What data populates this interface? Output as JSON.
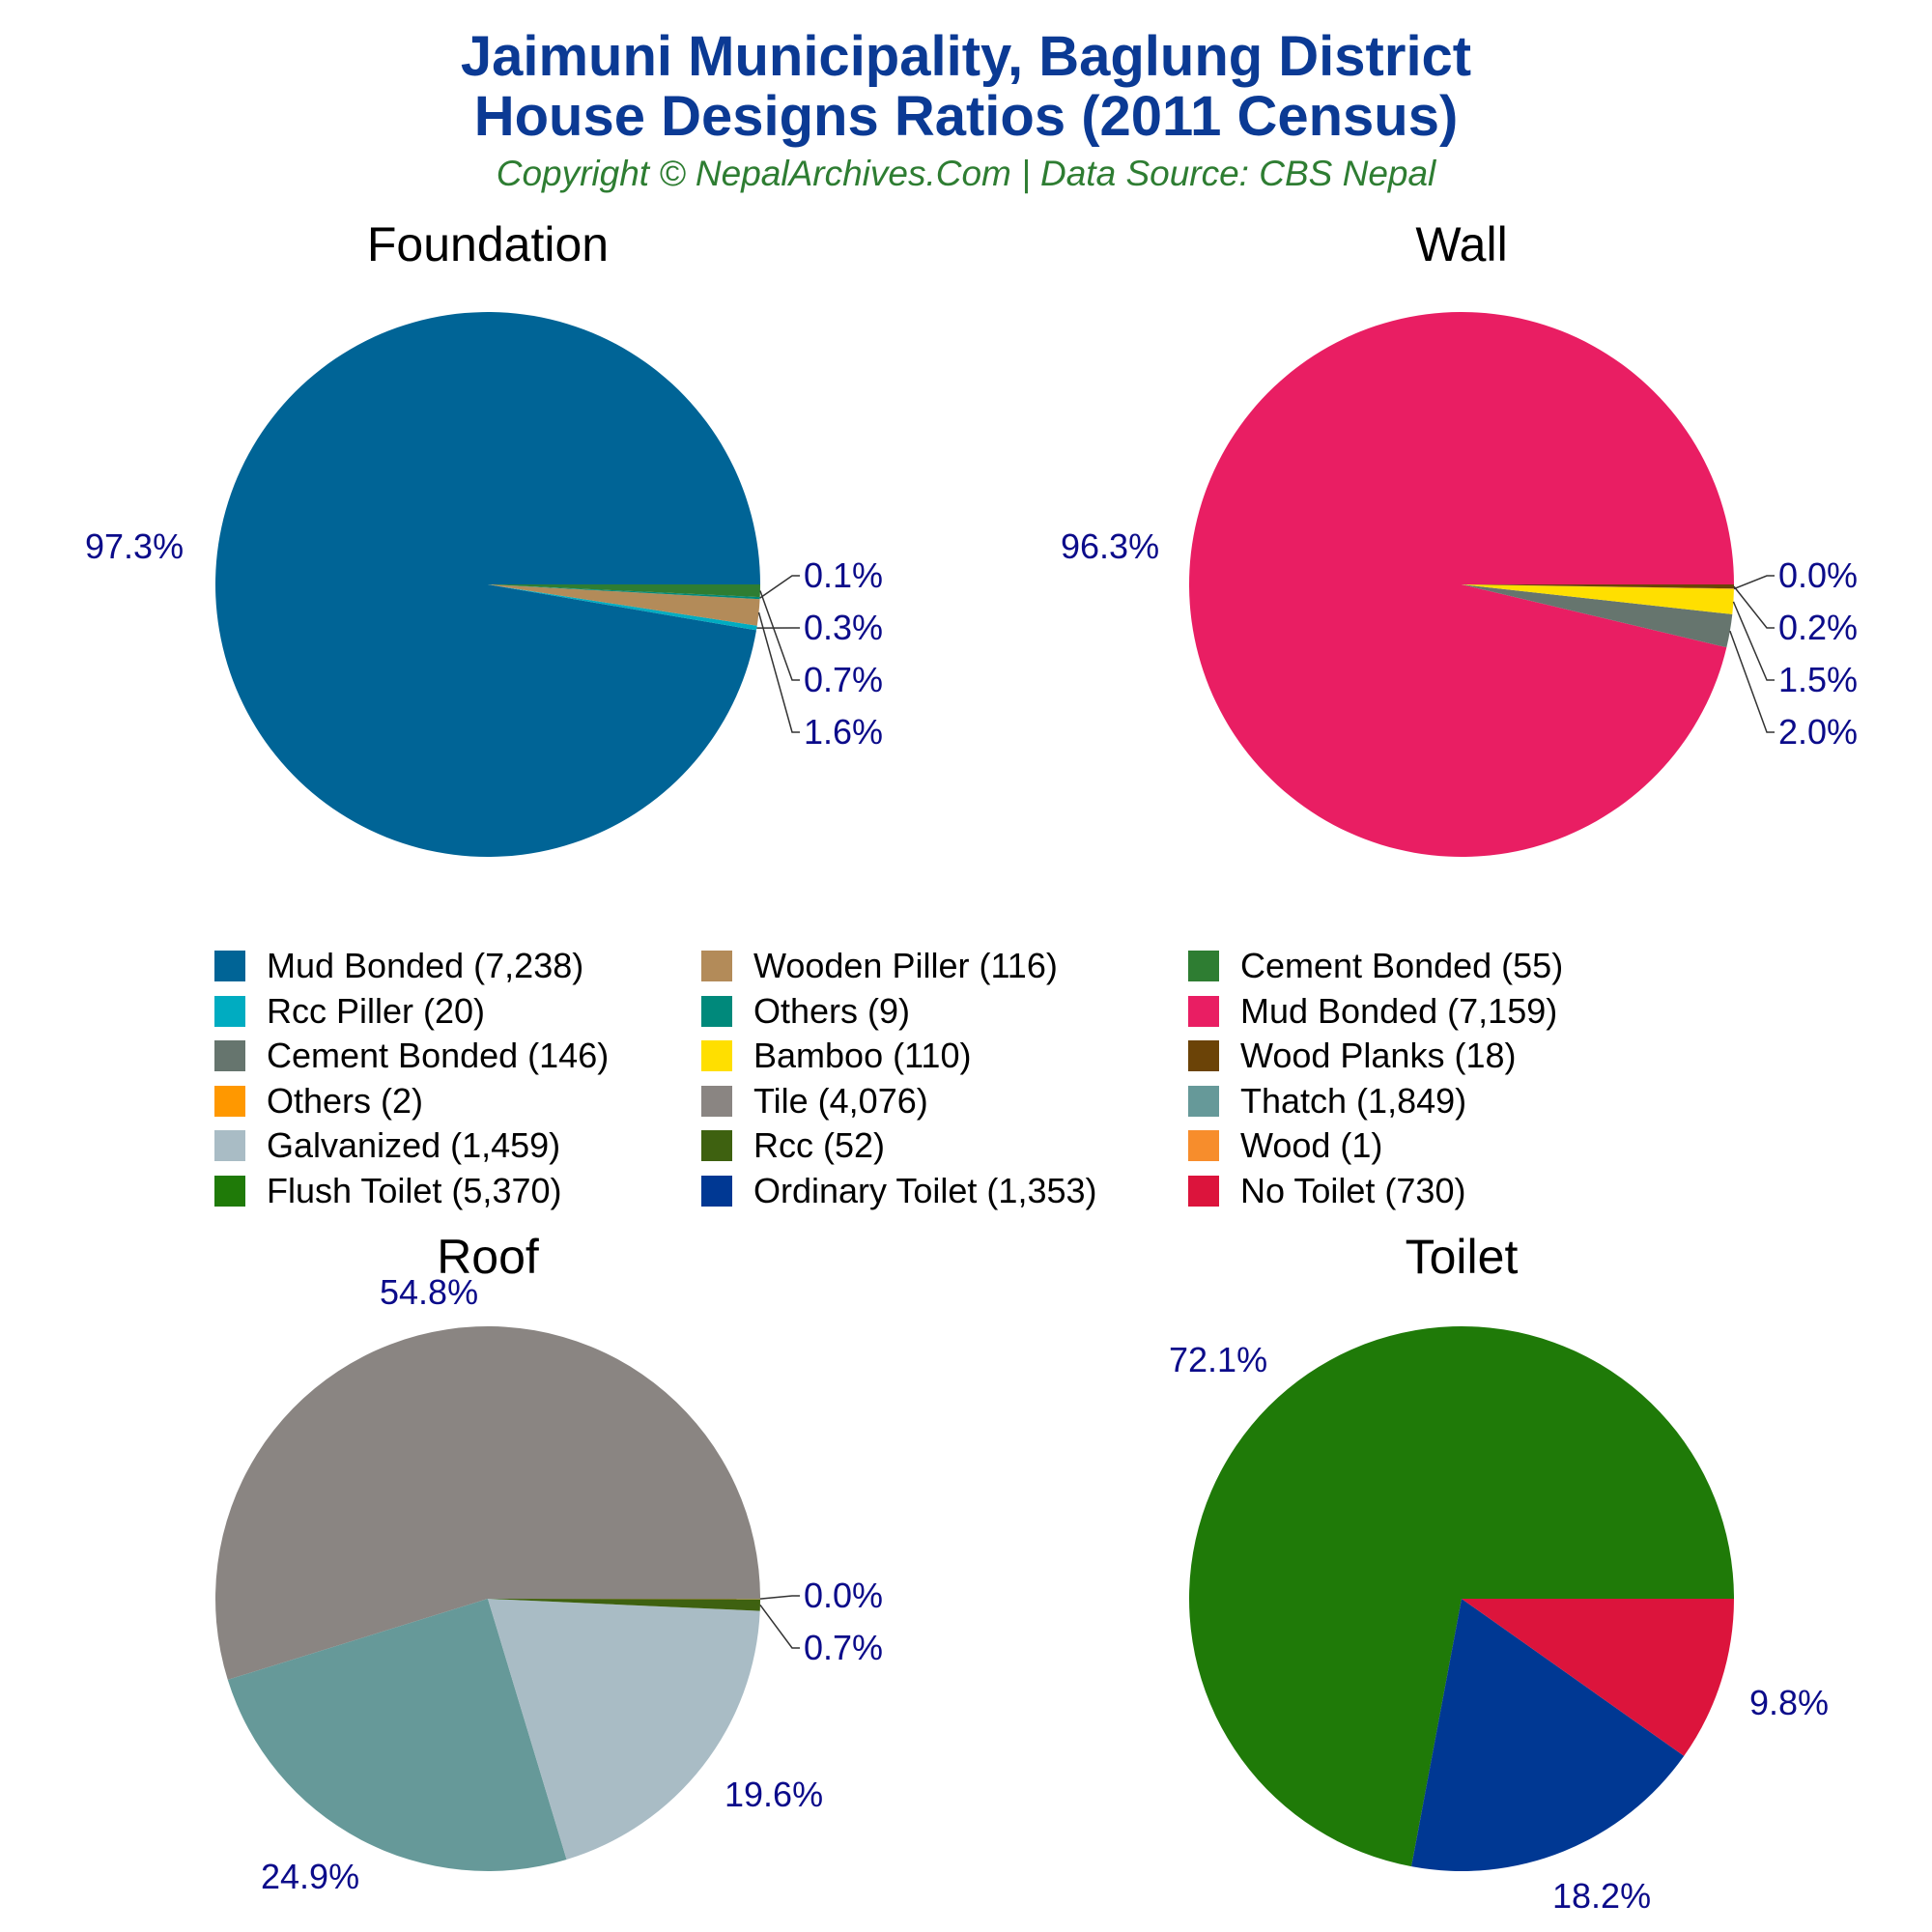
{
  "header": {
    "title_line1": "Jaimuni Municipality, Baglung District",
    "title_line2": "House Designs Ratios (2011 Census)",
    "subtitle": "Copyright © NepalArchives.Com | Data Source: CBS Nepal"
  },
  "chart_data": [
    {
      "type": "pie",
      "title": "Foundation",
      "slices": [
        {
          "label": "Mud Bonded",
          "value": 7238,
          "percent_label": "97.3%",
          "color": "#006496"
        },
        {
          "label": "Rcc Piller",
          "value": 20,
          "percent_label": "0.3%",
          "color": "#00acc1"
        },
        {
          "label": "Wooden Piller",
          "value": 116,
          "percent_label": "1.6%",
          "color": "#b38b59"
        },
        {
          "label": "Others",
          "value": 9,
          "percent_label": "0.1%",
          "color": "#00897b"
        },
        {
          "label": "Cement Bonded",
          "value": 55,
          "percent_label": "0.7%",
          "color": "#2e7d32"
        }
      ]
    },
    {
      "type": "pie",
      "title": "Wall",
      "slices": [
        {
          "label": "Mud Bonded",
          "value": 7159,
          "percent_label": "96.3%",
          "color": "#e91e63"
        },
        {
          "label": "Cement Bonded",
          "value": 146,
          "percent_label": "2.0%",
          "color": "#66756e"
        },
        {
          "label": "Bamboo",
          "value": 110,
          "percent_label": "1.5%",
          "color": "#ffdf00"
        },
        {
          "label": "Others",
          "value": 2,
          "percent_label": "0.0%",
          "color": "#ff9800"
        },
        {
          "label": "Wood Planks",
          "value": 18,
          "percent_label": "0.2%",
          "color": "#6b4307"
        }
      ]
    },
    {
      "type": "pie",
      "title": "Roof",
      "slices": [
        {
          "label": "Tile",
          "value": 4076,
          "percent_label": "54.8%",
          "color": "#8a8582"
        },
        {
          "label": "Thatch",
          "value": 1849,
          "percent_label": "24.9%",
          "color": "#669999"
        },
        {
          "label": "Galvanized",
          "value": 1459,
          "percent_label": "19.6%",
          "color": "#a9bcc5"
        },
        {
          "label": "Rcc",
          "value": 52,
          "percent_label": "0.7%",
          "color": "#3e6110"
        },
        {
          "label": "Wood",
          "value": 1,
          "percent_label": "0.0%",
          "color": "#f78d2c"
        }
      ]
    },
    {
      "type": "pie",
      "title": "Toilet",
      "slices": [
        {
          "label": "Flush Toilet",
          "value": 5370,
          "percent_label": "72.1%",
          "color": "#1f7a08"
        },
        {
          "label": "Ordinary Toilet",
          "value": 1353,
          "percent_label": "18.2%",
          "color": "#003893"
        },
        {
          "label": "No Toilet",
          "value": 730,
          "percent_label": "9.8%",
          "color": "#dc143c"
        }
      ]
    }
  ],
  "legend": [
    {
      "text": "Mud Bonded (7,238)",
      "color": "#006496"
    },
    {
      "text": "Wooden Piller (116)",
      "color": "#b38b59"
    },
    {
      "text": "Cement Bonded (55)",
      "color": "#2e7d32"
    },
    {
      "text": "Rcc Piller (20)",
      "color": "#00acc1"
    },
    {
      "text": "Others (9)",
      "color": "#00897b"
    },
    {
      "text": "Mud Bonded (7,159)",
      "color": "#e91e63"
    },
    {
      "text": "Cement Bonded (146)",
      "color": "#66756e"
    },
    {
      "text": "Bamboo (110)",
      "color": "#ffdf00"
    },
    {
      "text": "Wood Planks (18)",
      "color": "#6b4307"
    },
    {
      "text": "Others (2)",
      "color": "#ff9800"
    },
    {
      "text": "Tile (4,076)",
      "color": "#8a8582"
    },
    {
      "text": "Thatch (1,849)",
      "color": "#669999"
    },
    {
      "text": "Galvanized (1,459)",
      "color": "#a9bcc5"
    },
    {
      "text": "Rcc (52)",
      "color": "#3e6110"
    },
    {
      "text": "Wood (1)",
      "color": "#f78d2c"
    },
    {
      "text": "Flush Toilet (5,370)",
      "color": "#1f7a08"
    },
    {
      "text": "Ordinary Toilet (1,353)",
      "color": "#003893"
    },
    {
      "text": "No Toilet (730)",
      "color": "#dc143c"
    }
  ]
}
